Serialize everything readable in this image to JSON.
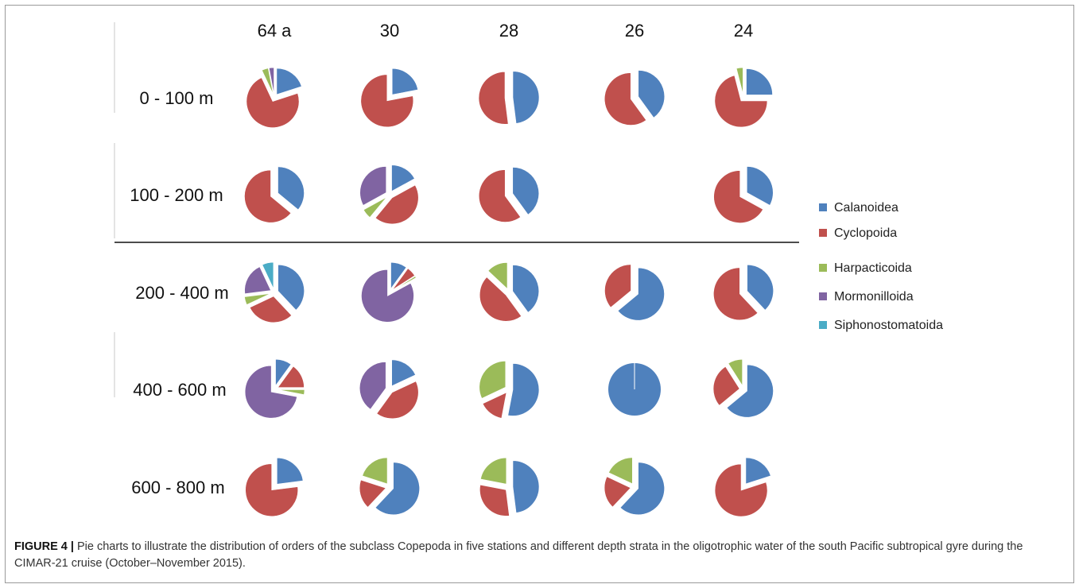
{
  "chart_data": {
    "type": "pie",
    "stations": [
      "64 a",
      "30",
      "28",
      "26",
      "24"
    ],
    "depths": [
      "0 - 100 m",
      "100 - 200 m",
      "200 - 400 m",
      "400 - 600 m",
      "600 - 800 m"
    ],
    "categories": [
      "Calanoidea",
      "Cyclopoida",
      "Harpacticoida",
      "Mormonilloida",
      "Siphonostomatoida"
    ],
    "colors": [
      "#4f81bd",
      "#c0504d",
      "#9bbb59",
      "#8064a2",
      "#4bacc6"
    ],
    "legend_position": "right",
    "pies": [
      {
        "depth": "0 - 100 m",
        "station": "64 a",
        "values": [
          20,
          73,
          4,
          3,
          0
        ]
      },
      {
        "depth": "0 - 100 m",
        "station": "30",
        "values": [
          22,
          78,
          0,
          0,
          0
        ]
      },
      {
        "depth": "0 - 100 m",
        "station": "28",
        "values": [
          48,
          52,
          0,
          0,
          0
        ]
      },
      {
        "depth": "0 - 100 m",
        "station": "26",
        "values": [
          40,
          60,
          0,
          0,
          0
        ]
      },
      {
        "depth": "0 - 100 m",
        "station": "24",
        "values": [
          25,
          71,
          4,
          0,
          0
        ]
      },
      {
        "depth": "100 - 200 m",
        "station": "64 a",
        "values": [
          36,
          64,
          0,
          0,
          0
        ]
      },
      {
        "depth": "100 - 200 m",
        "station": "30",
        "values": [
          17,
          44,
          6,
          33,
          0
        ]
      },
      {
        "depth": "100 - 200 m",
        "station": "28",
        "values": [
          40,
          60,
          0,
          0,
          0
        ]
      },
      {
        "depth": "100 - 200 m",
        "station": "26",
        "values": [
          0,
          0,
          0,
          0,
          0
        ]
      },
      {
        "depth": "100 - 200 m",
        "station": "24",
        "values": [
          33,
          67,
          0,
          0,
          0
        ]
      },
      {
        "depth": "200 - 400 m",
        "station": "64 a",
        "values": [
          38,
          30,
          5,
          20,
          7
        ]
      },
      {
        "depth": "200 - 400 m",
        "station": "30",
        "values": [
          10,
          6,
          1,
          83,
          0
        ]
      },
      {
        "depth": "200 - 400 m",
        "station": "28",
        "values": [
          40,
          47,
          13,
          0,
          0
        ]
      },
      {
        "depth": "200 - 400 m",
        "station": "26",
        "values": [
          64,
          36,
          0,
          0,
          0
        ]
      },
      {
        "depth": "200 - 400 m",
        "station": "24",
        "values": [
          38,
          62,
          0,
          0,
          0
        ]
      },
      {
        "depth": "400 - 600 m",
        "station": "64 a",
        "values": [
          10,
          15,
          3,
          72,
          0
        ]
      },
      {
        "depth": "400 - 600 m",
        "station": "30",
        "values": [
          18,
          42,
          0,
          40,
          0
        ]
      },
      {
        "depth": "400 - 600 m",
        "station": "28",
        "values": [
          53,
          15,
          32,
          0,
          0
        ]
      },
      {
        "depth": "400 - 600 m",
        "station": "26",
        "values": [
          100,
          0,
          0,
          0,
          0
        ]
      },
      {
        "depth": "400 - 600 m",
        "station": "24",
        "values": [
          64,
          27,
          9,
          0,
          0
        ]
      },
      {
        "depth": "600 - 800 m",
        "station": "64 a",
        "values": [
          23,
          77,
          0,
          0,
          0
        ]
      },
      {
        "depth": "600 - 800 m",
        "station": "30",
        "values": [
          62,
          18,
          20,
          0,
          0
        ]
      },
      {
        "depth": "600 - 800 m",
        "station": "28",
        "values": [
          48,
          30,
          22,
          0,
          0
        ]
      },
      {
        "depth": "600 - 800 m",
        "station": "26",
        "values": [
          62,
          20,
          18,
          0,
          0
        ]
      },
      {
        "depth": "600 - 800 m",
        "station": "24",
        "values": [
          20,
          80,
          0,
          0,
          0
        ]
      }
    ]
  },
  "caption": {
    "label": "FIGURE 4 |",
    "text": " Pie charts to illustrate the distribution of orders of the subclass Copepoda in five stations and different depth strata in the oligotrophic water of the south Pacific subtropical gyre during the CIMAR-21 cruise (October–November 2015)."
  }
}
